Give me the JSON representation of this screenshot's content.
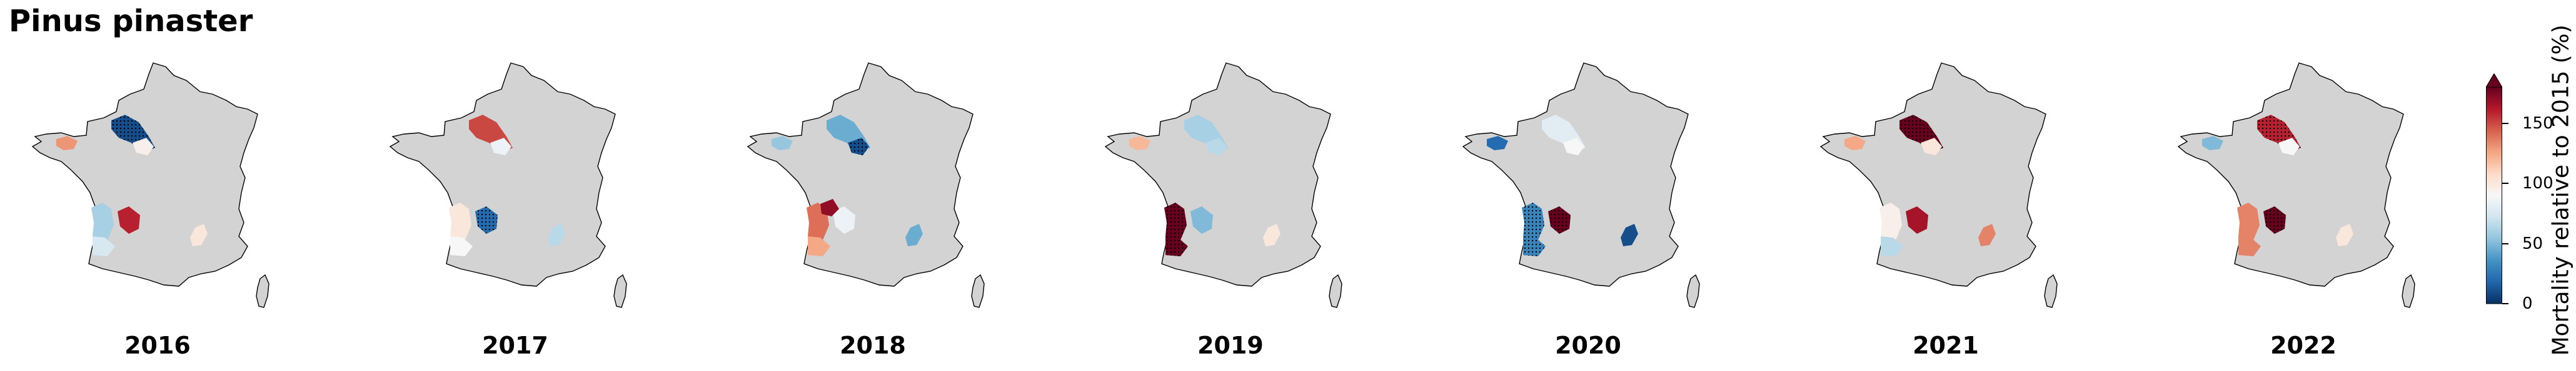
{
  "figure": {
    "title": "Pinus pinaster"
  },
  "colorbar": {
    "label": "Mortality relative to 2015 (%)",
    "ticks": [
      "0",
      "50",
      "100",
      "150"
    ],
    "tick_values": [
      0,
      50,
      100,
      150
    ],
    "vmin": 0,
    "vmax": 180,
    "extend": "max",
    "colormap": "RdBu_r",
    "stops": [
      "#053061",
      "#2166ac",
      "#4393c3",
      "#92c5de",
      "#d1e5f0",
      "#f7f7f7",
      "#fddbc7",
      "#f4a582",
      "#d6604d",
      "#b2182b",
      "#67001f"
    ],
    "no_data_color": "#d3d3d3"
  },
  "map_data": {
    "variable": "Mortality relative to 2015 (%)",
    "regions": [
      "brittany",
      "north",
      "center",
      "east_center",
      "landes_north",
      "landes_south",
      "southwest_inner",
      "southeast"
    ],
    "panels": [
      {
        "year": "2016",
        "values": {
          "brittany": 130,
          "north": 10,
          "landes_north": 60,
          "landes_south": 75,
          "southwest_inner": 160,
          "center": 95,
          "southeast": 100
        },
        "hatched": [
          "north"
        ]
      },
      {
        "year": "2017",
        "values": {
          "north": 150,
          "center": 85,
          "landes_north": 100,
          "landes_south": 90,
          "southwest_inner": 20,
          "southeast": 65
        },
        "hatched": [
          "southwest_inner"
        ]
      },
      {
        "year": "2018",
        "values": {
          "brittany": 55,
          "north": 45,
          "center": 10,
          "landes_north": 140,
          "landes_south": 125,
          "southwest_inner": 85,
          "east_center": 170,
          "southeast": 45
        },
        "hatched": [
          "center"
        ]
      },
      {
        "year": "2019",
        "values": {
          "brittany": 120,
          "north": 60,
          "landes_north": 185,
          "landes_south": 185,
          "southwest_inner": 50,
          "center": 65,
          "southeast": 100
        },
        "hatched": [
          "landes_north",
          "landes_south"
        ]
      },
      {
        "year": "2020",
        "values": {
          "brittany": 20,
          "north": 80,
          "center": 90,
          "landes_north": 30,
          "landes_south": 30,
          "southwest_inner": 185,
          "southeast": 10
        },
        "hatched": [
          "landes_north",
          "landes_south",
          "southwest_inner"
        ]
      },
      {
        "year": "2021",
        "values": {
          "brittany": 125,
          "north": 185,
          "center": 100,
          "landes_north": 95,
          "landes_south": 65,
          "southwest_inner": 165,
          "southeast": 135
        },
        "hatched": [
          "north"
        ]
      },
      {
        "year": "2022",
        "values": {
          "brittany": 50,
          "north": 160,
          "center": 90,
          "landes_north": 135,
          "landes_south": 135,
          "southwest_inner": 185,
          "southeast": 100
        },
        "hatched": [
          "north",
          "southwest_inner"
        ]
      }
    ]
  }
}
